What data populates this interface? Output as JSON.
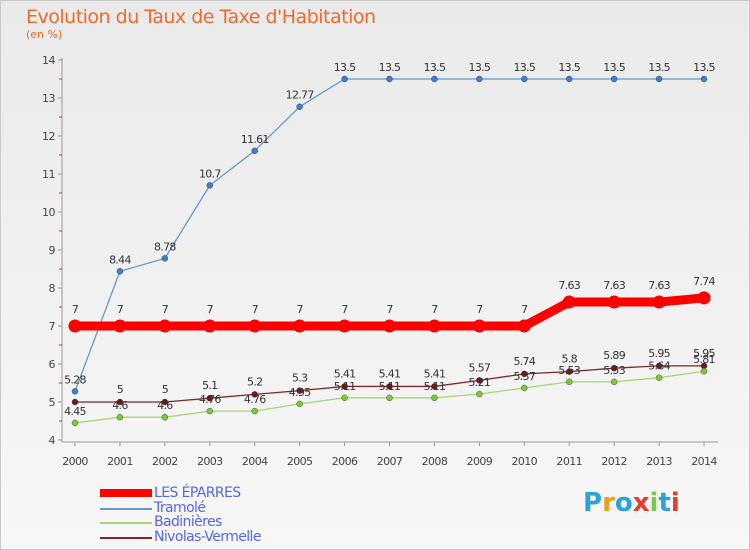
{
  "page": {
    "title": "Evolution du Taux de Taxe d'Habitation",
    "subtitle": "(en %)"
  },
  "chart_data": {
    "type": "line",
    "x": [
      "2000",
      "2001",
      "2002",
      "2003",
      "2004",
      "2005",
      "2006",
      "2007",
      "2008",
      "2009",
      "2010",
      "2011",
      "2012",
      "2013",
      "2014"
    ],
    "ylim": [
      4,
      14
    ],
    "yticks": [
      "4",
      "5",
      "6",
      "7",
      "8",
      "9",
      "10",
      "11",
      "12",
      "13",
      "14"
    ],
    "grid": false,
    "legend_position": "bottom-left",
    "series": [
      {
        "name": "LES ÉPARRES",
        "color": "#ff0000",
        "marker_color": "#ff0000",
        "values": [
          7,
          7,
          7,
          7,
          7,
          7,
          7,
          7,
          7,
          7,
          7,
          7.63,
          7.63,
          7.63,
          7.74
        ],
        "labels": [
          "7",
          "7",
          "7",
          "7",
          "7",
          "7",
          "7",
          "7",
          "7",
          "7",
          "7",
          "7.63",
          "7.63",
          "7.63",
          "7.74"
        ]
      },
      {
        "name": "Tramolé",
        "color": "#6699cc",
        "marker_color": "#3a7fd0",
        "values": [
          5.28,
          8.44,
          8.78,
          10.7,
          11.61,
          12.77,
          13.5,
          13.5,
          13.5,
          13.5,
          13.5,
          13.5,
          13.5,
          13.5,
          13.5
        ],
        "labels": [
          "5.28",
          "8.44",
          "8.78",
          "10.7",
          "11.61",
          "12.77",
          "13.5",
          "13.5",
          "13.5",
          "13.5",
          "13.5",
          "13.5",
          "13.5",
          "13.5",
          "13.5"
        ]
      },
      {
        "name": "Badinières",
        "color": "#aad37a",
        "marker_color": "#77cc33",
        "values": [
          4.45,
          4.6,
          4.6,
          4.76,
          4.76,
          4.95,
          5.11,
          5.11,
          5.11,
          5.21,
          5.37,
          5.53,
          5.53,
          5.64,
          5.81
        ],
        "labels": [
          "4.45",
          "4.6",
          "4.6",
          "4.76",
          "4.76",
          "4.95",
          "5.11",
          "5.11",
          "5.11",
          "5.21",
          "5.37",
          "5.53",
          "5.53",
          "5.64",
          "5.81"
        ]
      },
      {
        "name": "Nivolas-Vermelle",
        "color": "#7a2a2a",
        "marker_color": "#6b1a1a",
        "values": [
          5,
          5,
          5,
          5.1,
          5.2,
          5.3,
          5.41,
          5.41,
          5.41,
          5.57,
          5.74,
          5.8,
          5.89,
          5.95,
          5.95
        ],
        "labels": [
          "",
          "5",
          "5",
          "5.1",
          "5.2",
          "5.3",
          "5.41",
          "5.41",
          "5.41",
          "5.57",
          "5.74",
          "5.8",
          "5.89",
          "5.95",
          "5.95"
        ]
      }
    ]
  },
  "logo": {
    "text": "Proxiti",
    "colors": [
      "#2aa3d6",
      "#f29b1d",
      "#2aa3d6",
      "#e63b2e",
      "#7ac943",
      "#2aa3d6",
      "#e63b2e"
    ]
  }
}
